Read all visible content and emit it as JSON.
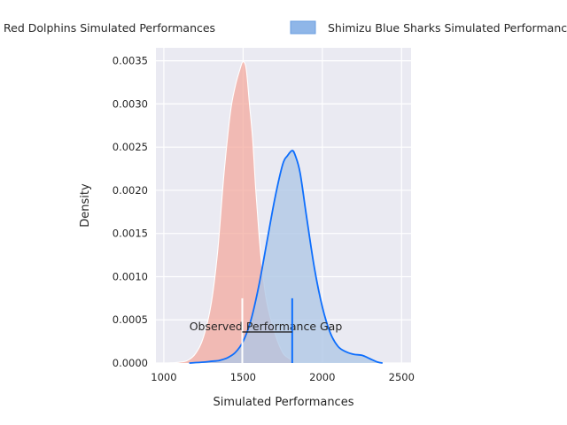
{
  "chart_data": {
    "type": "area",
    "xlabel": "Simulated Performances",
    "ylabel": "Density",
    "xlim": [
      950,
      2560
    ],
    "ylim": [
      0,
      0.00365
    ],
    "xticks": [
      1000,
      1500,
      2000,
      2500
    ],
    "yticks": [
      0.0,
      0.0005,
      0.001,
      0.0015,
      0.002,
      0.0025,
      0.003,
      0.0035
    ],
    "xtick_labels": [
      "1000",
      "1500",
      "2000",
      "2500"
    ],
    "ytick_labels": [
      "0.0000",
      "0.0005",
      "0.0010",
      "0.0015",
      "0.0020",
      "0.0025",
      "0.0030",
      "0.0035"
    ],
    "grid": true,
    "legend": {
      "placement": "above plot"
    },
    "series": [
      {
        "name": "Red Dolphins Simulated Performances",
        "color": "#f4a79b",
        "edge_color": "#ffffff",
        "x": [
          1030,
          1100,
          1150,
          1200,
          1250,
          1300,
          1340,
          1380,
          1420,
          1450,
          1480,
          1500,
          1520,
          1540,
          1560,
          1580,
          1600,
          1620,
          1650,
          1700,
          1750,
          1800,
          1810
        ],
        "y": [
          0.0,
          1e-05,
          3e-05,
          0.00011,
          0.0003,
          0.0007,
          0.0013,
          0.0022,
          0.0029,
          0.0032,
          0.0034,
          0.00349,
          0.0034,
          0.003,
          0.0026,
          0.002,
          0.0015,
          0.0011,
          0.0007,
          0.00035,
          0.00012,
          4e-05,
          0.0
        ]
      },
      {
        "name": "Shimizu Blue Sharks Simulated Performances",
        "color": "#0d6efd",
        "fill_color": "#aec6e6",
        "x": [
          1160,
          1250,
          1300,
          1350,
          1400,
          1450,
          1500,
          1550,
          1600,
          1650,
          1700,
          1750,
          1780,
          1810,
          1830,
          1860,
          1900,
          1950,
          2000,
          2050,
          2100,
          2150,
          2200,
          2250,
          2300,
          2350,
          2380
        ],
        "y": [
          0.0,
          1e-05,
          2e-05,
          3e-05,
          6e-05,
          0.00012,
          0.00025,
          0.0005,
          0.0009,
          0.0014,
          0.0019,
          0.0023,
          0.0024,
          0.00246,
          0.0024,
          0.0022,
          0.0017,
          0.0011,
          0.00065,
          0.00035,
          0.00019,
          0.00013,
          0.0001,
          9e-05,
          5e-05,
          1e-05,
          0.0
        ]
      }
    ],
    "annotation": {
      "text": "Observed Performance Gap",
      "x": 1320,
      "y": 0.0004,
      "bracket_x": [
        1495,
        1810
      ],
      "bracket_y": 0.00036,
      "vline_top": 0.00075
    }
  }
}
